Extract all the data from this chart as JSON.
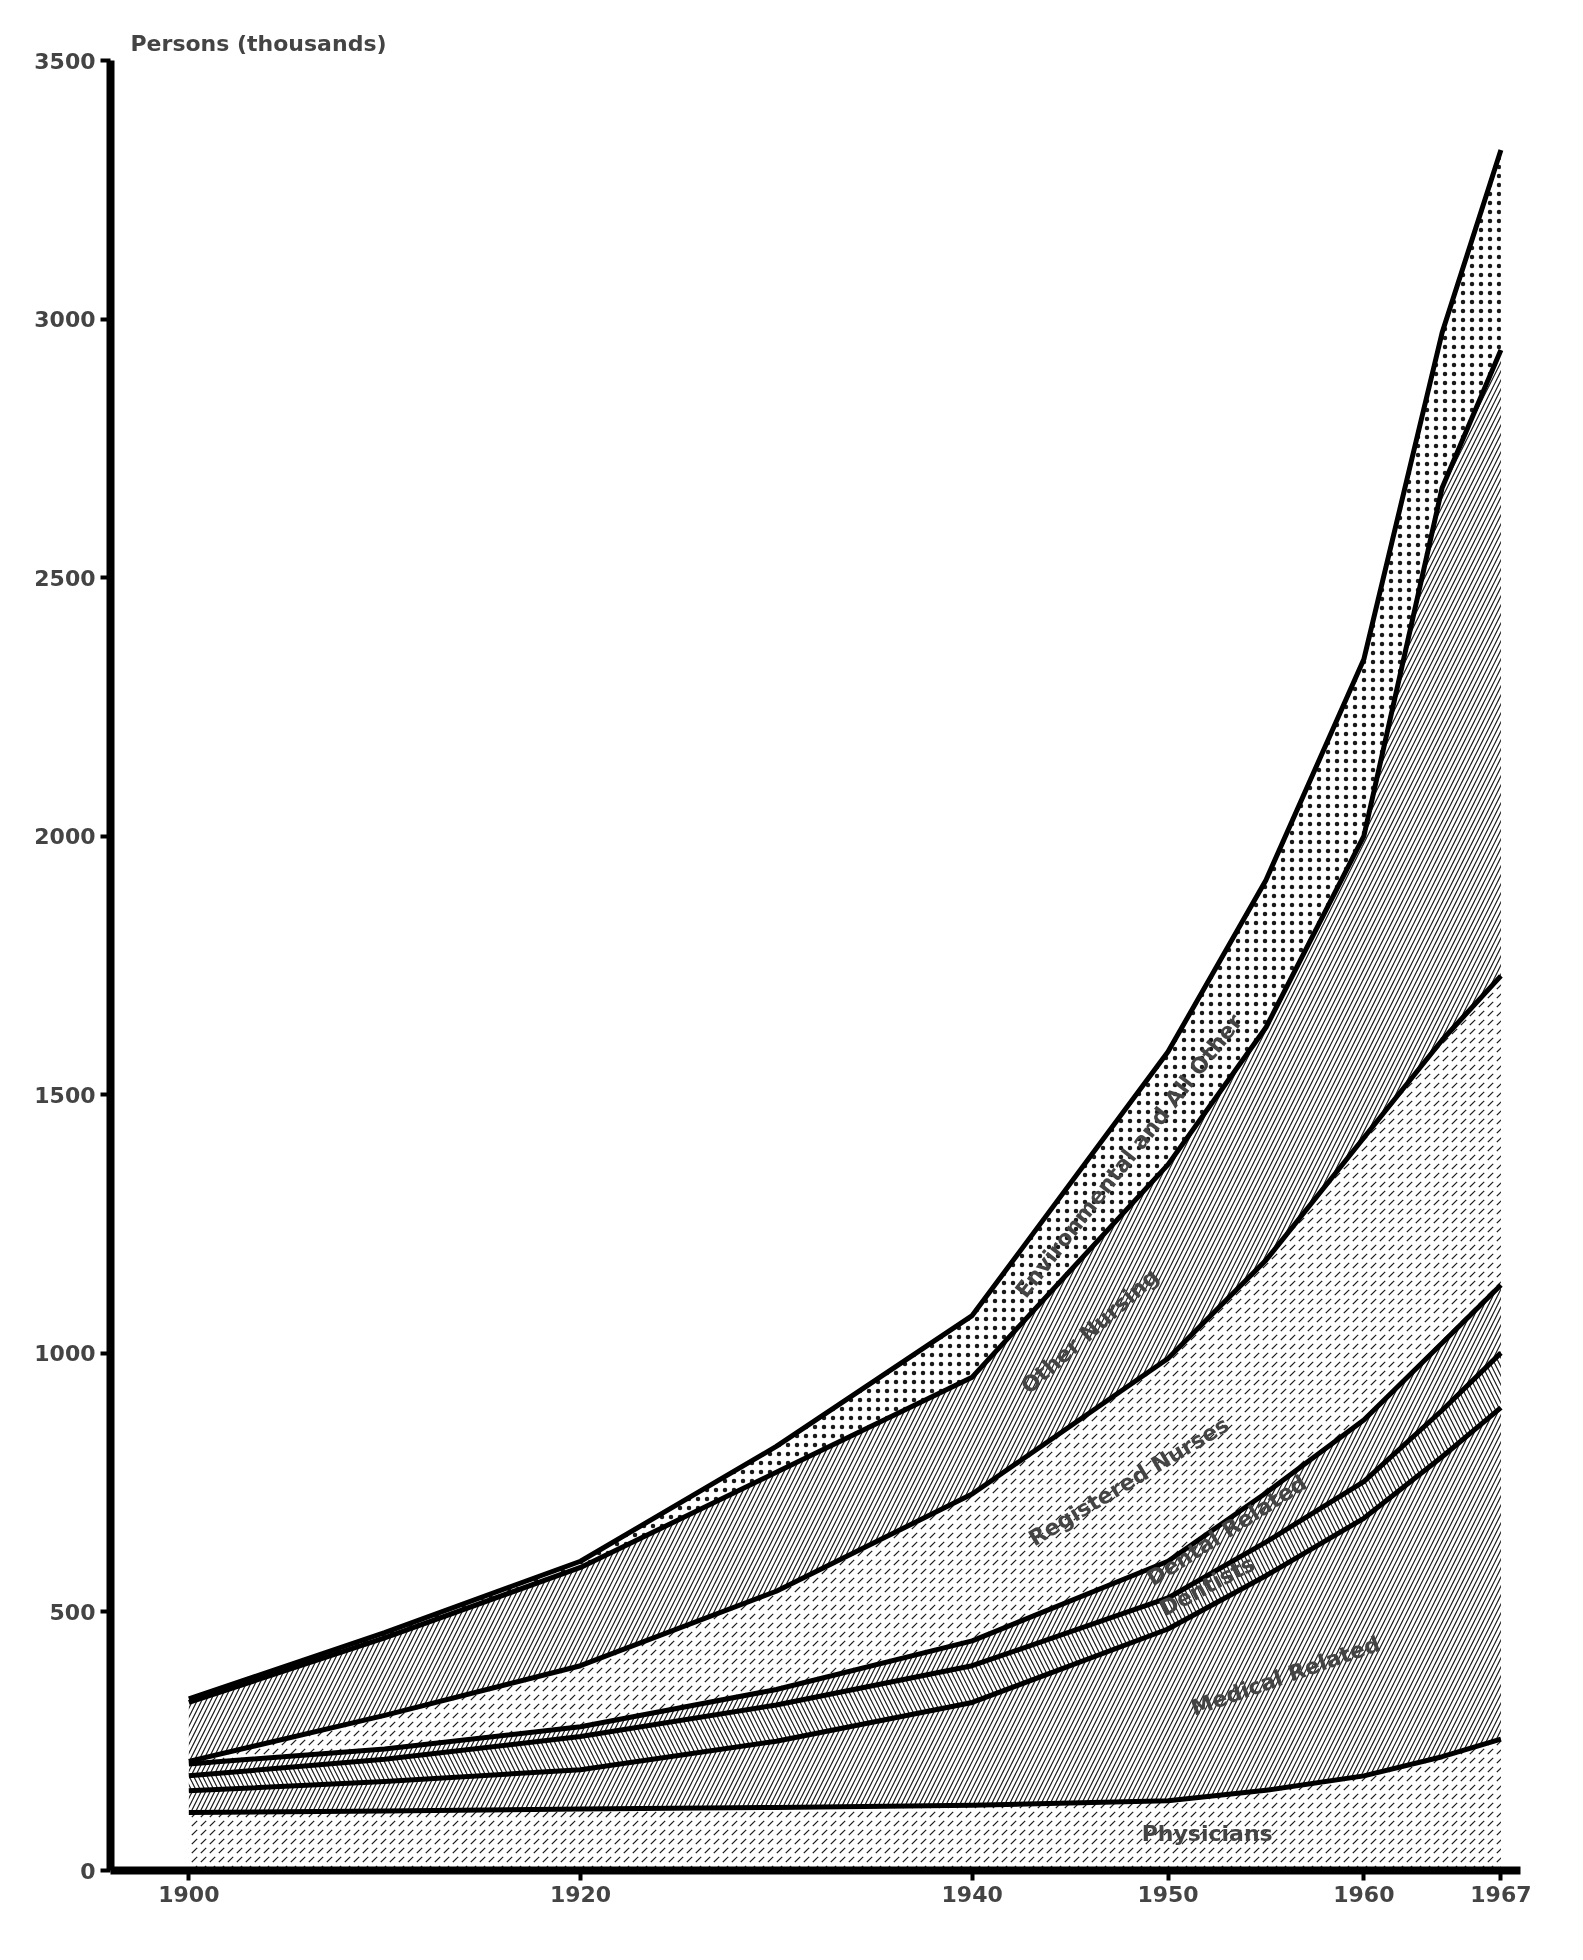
{
  "chart_data": {
    "type": "area",
    "stacked": true,
    "ylabel": "Persons (thousands)",
    "x": [
      1900,
      1910,
      1920,
      1930,
      1940,
      1950,
      1955,
      1960,
      1964,
      1967
    ],
    "xlim": [
      1896,
      1968
    ],
    "xticks": [
      1900,
      1920,
      1940,
      1950,
      1960,
      1967
    ],
    "ylim": [
      0,
      3500
    ],
    "yticks": [
      0,
      500,
      1000,
      1500,
      2000,
      2500,
      3000,
      3500
    ],
    "grid": false,
    "legend": false,
    "series": [
      {
        "name": "Physicians",
        "color": "#000000",
        "values": [
          112,
          115,
          119,
          122,
          126,
          135,
          155,
          183,
          220,
          254
        ]
      },
      {
        "name": "Medical Related",
        "color": "#000000",
        "values": [
          42,
          57,
          76,
          128,
          199,
          332,
          415,
          498,
          580,
          641
        ]
      },
      {
        "name": "Dentists",
        "color": "#000000",
        "values": [
          29,
          43,
          64,
          70,
          71,
          60,
          65,
          71,
          90,
          106
        ]
      },
      {
        "name": "Dental Related",
        "color": "#000000",
        "values": [
          23,
          20,
          19,
          30,
          48,
          71,
          95,
          119,
          130,
          131
        ]
      },
      {
        "name": "Registered Nurses",
        "color": "#000000",
        "values": [
          5,
          65,
          118,
          190,
          284,
          392,
          450,
          546,
          586,
          598
        ]
      },
      {
        "name": "Other Nursing",
        "color": "#000000",
        "values": [
          114,
          150,
          190,
          230,
          226,
          375,
          450,
          583,
          1068,
          1210
        ]
      },
      {
        "name": "Environmental and All Other",
        "color": "#000000",
        "values": [
          7,
          10,
          12,
          50,
          119,
          218,
          285,
          342,
          300,
          387
        ]
      }
    ]
  }
}
